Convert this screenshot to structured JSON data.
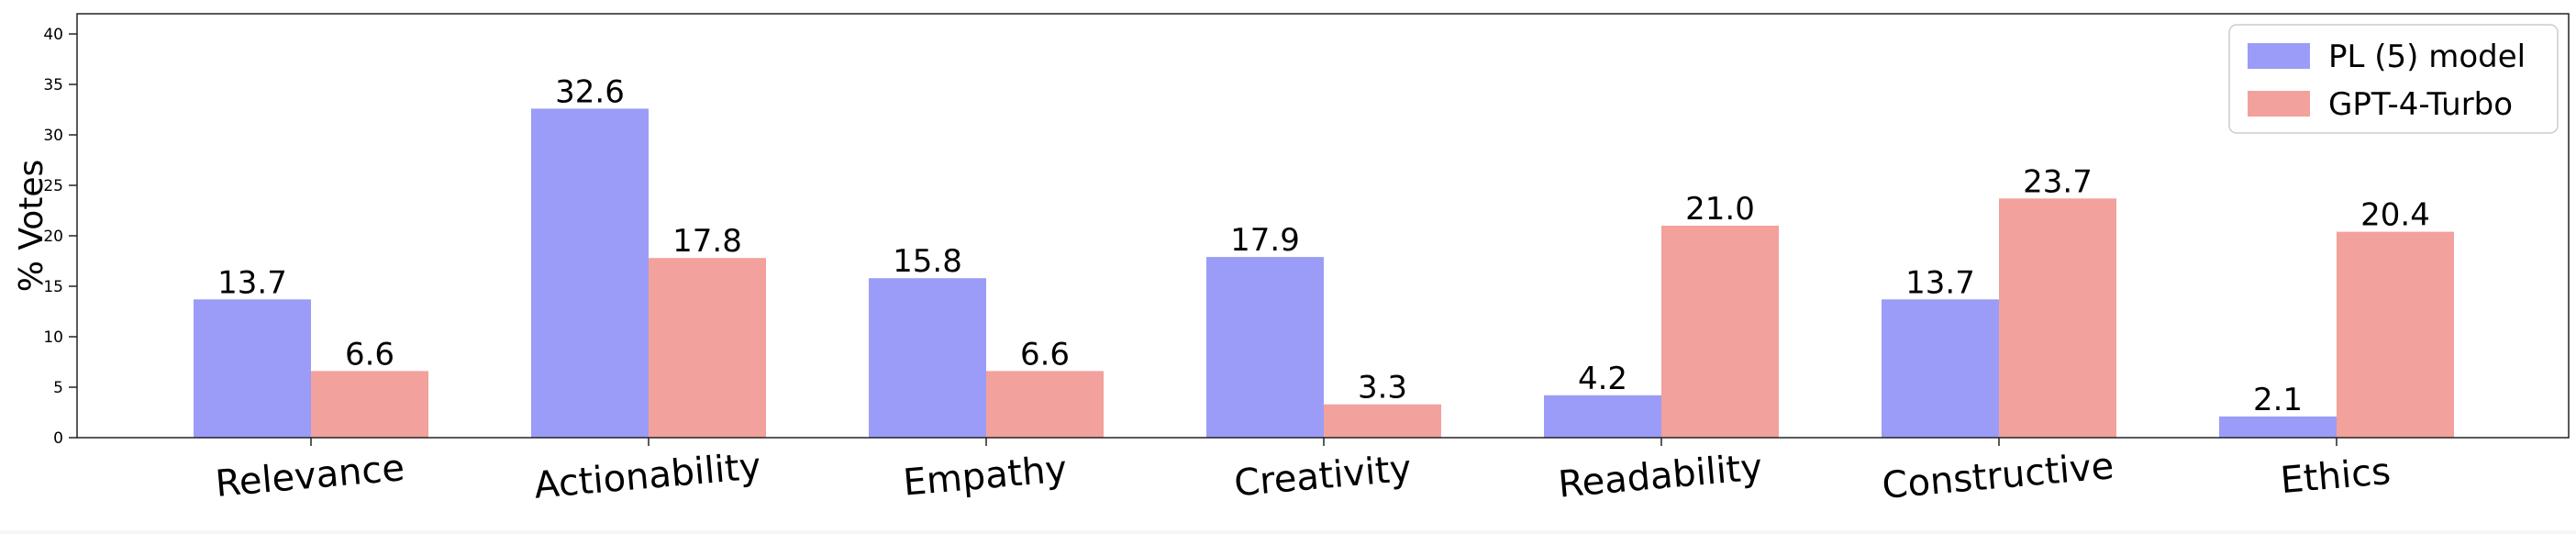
{
  "chart_data": {
    "type": "bar",
    "title": "",
    "xlabel": "",
    "ylabel": "% Votes",
    "ylim": [
      0,
      42
    ],
    "yticks": [
      0,
      5,
      10,
      15,
      20,
      25,
      30,
      35,
      40
    ],
    "grid": false,
    "legend_position": "top-right",
    "categories": [
      "Relevance",
      "Actionability",
      "Empathy",
      "Creativity",
      "Readability",
      "Constructive",
      "Ethics"
    ],
    "series": [
      {
        "name": "PL (5) model",
        "color": "#9b9cf7",
        "values": [
          13.7,
          32.6,
          15.8,
          17.9,
          4.2,
          13.7,
          2.1
        ],
        "labels": [
          "13.7",
          "32.6",
          "15.8",
          "17.9",
          "4.2",
          "13.7",
          "2.1"
        ]
      },
      {
        "name": "GPT-4-Turbo",
        "color": "#f2a19c",
        "values": [
          6.6,
          17.8,
          6.6,
          3.3,
          21.0,
          23.7,
          20.4
        ],
        "labels": [
          "6.6",
          "17.8",
          "6.6",
          "3.3",
          "21.0",
          "23.7",
          "20.4"
        ]
      }
    ]
  }
}
